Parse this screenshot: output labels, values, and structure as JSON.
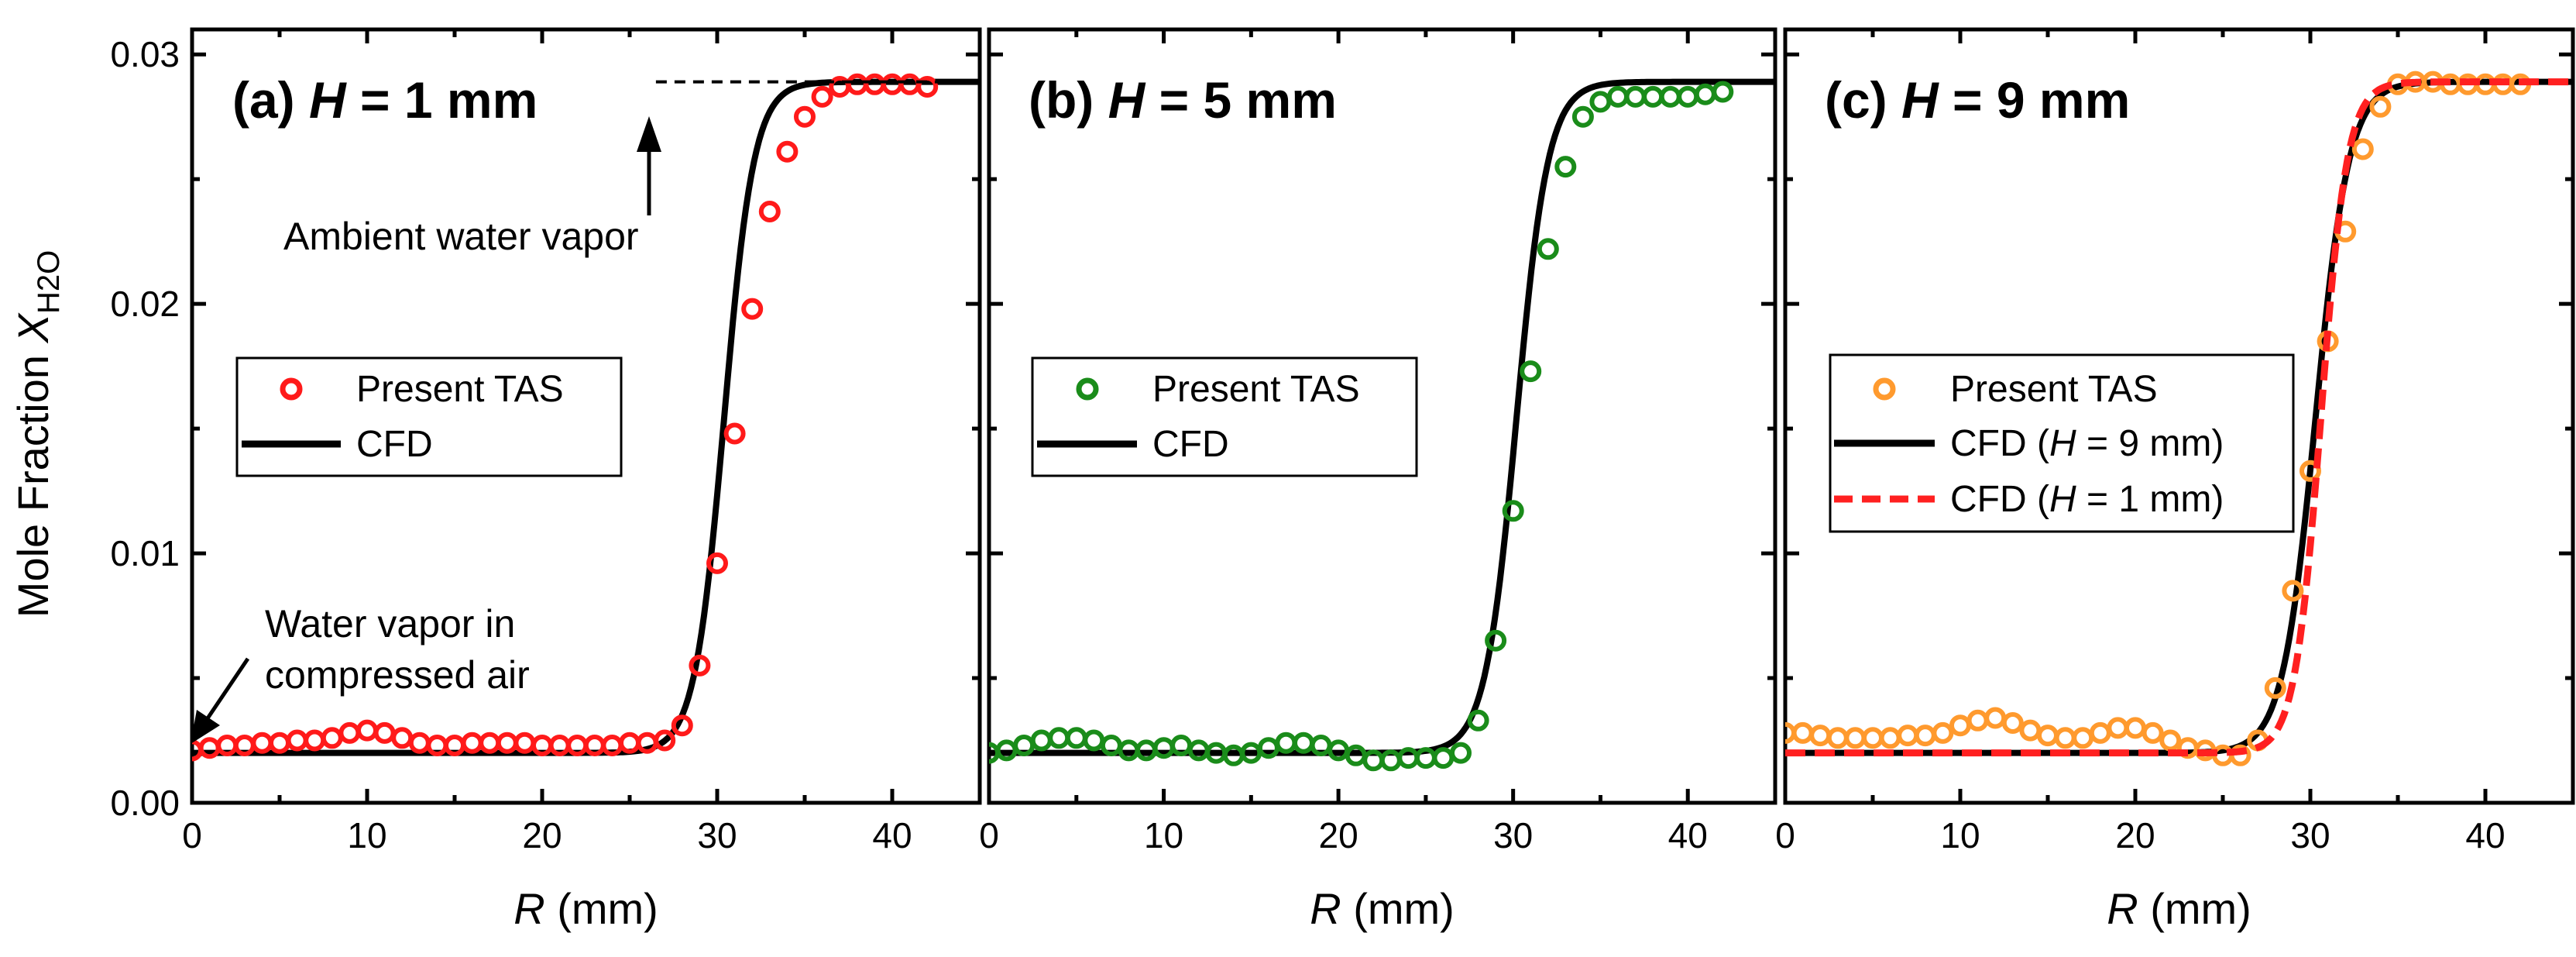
{
  "figure": {
    "y_label_main": "Mole Fraction ",
    "y_label_var": "X",
    "y_label_sub": "H2O",
    "x_label_var": "R",
    "x_label_unit": " (mm)"
  },
  "colors": {
    "cfd": "#000000",
    "tas_a": "#ff1a1a",
    "tas_b": "#1a8c1a",
    "tas_c": "#ff9a2e",
    "cfd_h1": "#ff2020"
  },
  "chart_data": [
    {
      "type": "scatter+line",
      "panel": "a",
      "title_prefix": "(a) ",
      "title_var": "H",
      "title_suffix": " = 1 mm",
      "xlabel": "R (mm)",
      "ylabel": "Mole Fraction X_H2O",
      "xlim": [
        0,
        45
      ],
      "ylim": [
        0,
        0.031
      ],
      "xticks": [
        0,
        10,
        20,
        30,
        40
      ],
      "xtick_labels": [
        "0",
        "10",
        "20",
        "30",
        "40"
      ],
      "yticks": [
        0,
        0.01,
        0.02,
        0.03
      ],
      "ytick_labels": [
        "0.00",
        "0.01",
        "0.02",
        "0.03"
      ],
      "legend": [
        {
          "label": "Present TAS",
          "kind": "circle",
          "color": "#ff1a1a"
        },
        {
          "label": "CFD",
          "kind": "line",
          "color": "#000000"
        }
      ],
      "series": [
        {
          "name": "Present TAS",
          "kind": "scatter",
          "x": [
            0,
            1,
            2,
            3,
            4,
            5,
            6,
            7,
            8,
            9,
            10,
            11,
            12,
            13,
            14,
            15,
            16,
            17,
            18,
            19,
            20,
            21,
            22,
            23,
            24,
            25,
            26,
            27,
            28,
            29,
            30,
            31,
            32,
            33,
            34,
            35,
            36,
            37,
            38,
            39,
            40,
            41,
            42
          ],
          "y": [
            0.0021,
            0.0022,
            0.0023,
            0.0023,
            0.0024,
            0.0024,
            0.0025,
            0.0025,
            0.0026,
            0.0028,
            0.0029,
            0.0028,
            0.0026,
            0.0024,
            0.0023,
            0.0023,
            0.0024,
            0.0024,
            0.0024,
            0.0024,
            0.0023,
            0.0023,
            0.0023,
            0.0023,
            0.0023,
            0.0024,
            0.0024,
            0.0025,
            0.0031,
            0.0055,
            0.0096,
            0.0148,
            0.0198,
            0.0237,
            0.0261,
            0.0275,
            0.0283,
            0.0287,
            0.0288,
            0.0288,
            0.0288,
            0.0288,
            0.0287
          ]
        },
        {
          "name": "CFD",
          "kind": "sigmoid",
          "low": 0.002,
          "high": 0.0289,
          "center": 30.4,
          "width": 0.85,
          "x_range": [
            0,
            45
          ]
        }
      ],
      "annotations": [
        {
          "text": "Ambient water vapor",
          "target": [
            26.5,
            0.0289
          ]
        },
        {
          "text_lines": [
            "Water vapor in",
            "compressed air"
          ],
          "target": [
            0,
            0.002
          ]
        }
      ]
    },
    {
      "type": "scatter+line",
      "panel": "b",
      "title_prefix": "(b) ",
      "title_var": "H",
      "title_suffix": " = 5 mm",
      "xlabel": "R (mm)",
      "xlim": [
        0,
        45
      ],
      "ylim": [
        0,
        0.031
      ],
      "xticks": [
        0,
        10,
        20,
        30,
        40
      ],
      "xtick_labels": [
        "0",
        "10",
        "20",
        "30",
        "40"
      ],
      "yticks": [
        0,
        0.01,
        0.02,
        0.03
      ],
      "legend": [
        {
          "label": "Present TAS",
          "kind": "circle",
          "color": "#1a8c1a"
        },
        {
          "label": "CFD",
          "kind": "line",
          "color": "#000000"
        }
      ],
      "series": [
        {
          "name": "Present TAS",
          "kind": "scatter",
          "x": [
            0,
            1,
            2,
            3,
            4,
            5,
            6,
            7,
            8,
            9,
            10,
            11,
            12,
            13,
            14,
            15,
            16,
            17,
            18,
            19,
            20,
            21,
            22,
            23,
            24,
            25,
            26,
            27,
            28,
            29,
            30,
            31,
            32,
            33,
            34,
            35,
            36,
            37,
            38,
            39,
            40,
            41,
            42
          ],
          "y": [
            0.002,
            0.0021,
            0.0023,
            0.0025,
            0.0026,
            0.0026,
            0.0025,
            0.0023,
            0.0021,
            0.0021,
            0.0022,
            0.0023,
            0.0021,
            0.002,
            0.0019,
            0.002,
            0.0022,
            0.0024,
            0.0024,
            0.0023,
            0.0021,
            0.0019,
            0.0017,
            0.0017,
            0.0018,
            0.0018,
            0.0018,
            0.002,
            0.0033,
            0.0065,
            0.0117,
            0.0173,
            0.0222,
            0.0255,
            0.0275,
            0.0281,
            0.0283,
            0.0283,
            0.0283,
            0.0283,
            0.0283,
            0.0284,
            0.0285
          ]
        },
        {
          "name": "CFD",
          "kind": "sigmoid",
          "low": 0.002,
          "high": 0.0289,
          "center": 30.2,
          "width": 0.9,
          "x_range": [
            0,
            45
          ]
        }
      ]
    },
    {
      "type": "scatter+line",
      "panel": "c",
      "title_prefix": "(c) ",
      "title_var": "H",
      "title_suffix": " = 9 mm",
      "xlabel": "R (mm)",
      "xlim": [
        0,
        45
      ],
      "ylim": [
        0,
        0.031
      ],
      "xticks": [
        0,
        10,
        20,
        30,
        40
      ],
      "xtick_labels": [
        "0",
        "10",
        "20",
        "30",
        "40"
      ],
      "yticks": [
        0,
        0.01,
        0.02,
        0.03
      ],
      "legend": [
        {
          "label": "Present TAS",
          "kind": "circle",
          "color": "#ff9a2e"
        },
        {
          "label_prefix": "CFD (",
          "label_var": "H",
          "label_suffix": " = 9 mm)",
          "kind": "line",
          "color": "#000000"
        },
        {
          "label_prefix": "CFD (",
          "label_var": "H",
          "label_suffix": " = 1 mm)",
          "kind": "dash",
          "color": "#ff2020"
        }
      ],
      "series": [
        {
          "name": "Present TAS",
          "kind": "scatter",
          "x": [
            0,
            1,
            2,
            3,
            4,
            5,
            6,
            7,
            8,
            9,
            10,
            11,
            12,
            13,
            14,
            15,
            16,
            17,
            18,
            19,
            20,
            21,
            22,
            23,
            24,
            25,
            26,
            27,
            28,
            29,
            30,
            31,
            32,
            33,
            34,
            35,
            36,
            37,
            38,
            39,
            40,
            41,
            42
          ],
          "y": [
            0.0028,
            0.0028,
            0.0027,
            0.0026,
            0.0026,
            0.0026,
            0.0026,
            0.0027,
            0.0027,
            0.0028,
            0.0031,
            0.0033,
            0.0034,
            0.0032,
            0.0029,
            0.0027,
            0.0026,
            0.0026,
            0.0028,
            0.003,
            0.003,
            0.0028,
            0.0025,
            0.0022,
            0.0021,
            0.0019,
            0.0019,
            0.0025,
            0.0046,
            0.0085,
            0.0133,
            0.0185,
            0.0229,
            0.0262,
            0.0279,
            0.0288,
            0.0289,
            0.0289,
            0.0288,
            0.0288,
            0.0288,
            0.0288,
            0.0288
          ]
        },
        {
          "name": "CFD (H = 9 mm)",
          "kind": "sigmoid",
          "low": 0.002,
          "high": 0.0289,
          "center": 30.3,
          "width": 0.95,
          "x_range": [
            0,
            45
          ]
        },
        {
          "name": "CFD (H = 1 mm)",
          "kind": "sigmoid",
          "low": 0.002,
          "high": 0.0289,
          "center": 30.6,
          "width": 0.75,
          "x_range": [
            0,
            45
          ]
        }
      ]
    }
  ]
}
